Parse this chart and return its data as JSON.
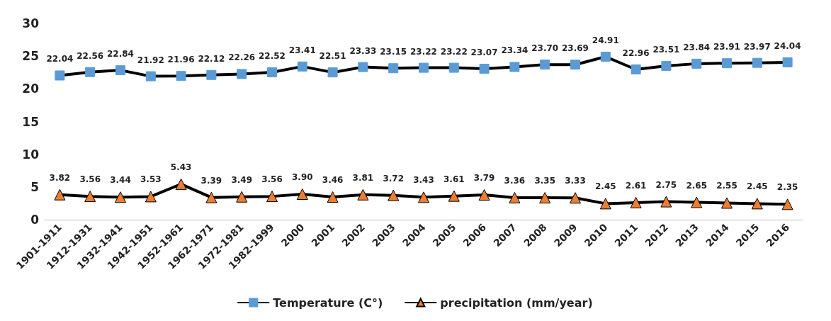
{
  "chart_data": {
    "type": "line",
    "categories": [
      "1901-1911",
      "1912-1931",
      "1932-1941",
      "1942-1951",
      "1952-1961",
      "1962-1971",
      "1972-1981",
      "1982-1999",
      "2000",
      "2001",
      "2002",
      "2003",
      "2004",
      "2005",
      "2006",
      "2007",
      "2008",
      "2009",
      "2010",
      "2011",
      "2012",
      "2013",
      "2014",
      "2015",
      "2016"
    ],
    "series": [
      {
        "name": "Temperature (C°)",
        "color": "#5b9bd5",
        "marker": "square",
        "values": [
          22.04,
          22.56,
          22.84,
          21.92,
          21.96,
          22.12,
          22.26,
          22.52,
          23.41,
          22.51,
          23.33,
          23.15,
          23.22,
          23.22,
          23.07,
          23.34,
          23.7,
          23.69,
          24.91,
          22.96,
          23.51,
          23.84,
          23.91,
          23.97,
          24.04
        ],
        "value_labels": [
          "22.04",
          "22.56",
          "22.84",
          "21.92",
          "21.96",
          "22.12",
          "22.26",
          "22.52",
          "23.41",
          "22.51",
          "23.33",
          "23.15",
          "23.22",
          "23.22",
          "23.07",
          "23.34",
          "23.70",
          "23.69",
          "24.91",
          "22.96",
          "23.51",
          "23.84",
          "23.91",
          "23.97",
          "24.04"
        ]
      },
      {
        "name": "precipitation (mm/year)",
        "color": "#ed7d31",
        "marker": "triangle",
        "values": [
          3.82,
          3.56,
          3.44,
          3.53,
          5.43,
          3.39,
          3.49,
          3.56,
          3.9,
          3.46,
          3.81,
          3.72,
          3.43,
          3.61,
          3.79,
          3.36,
          3.35,
          3.33,
          2.45,
          2.61,
          2.75,
          2.65,
          2.55,
          2.45,
          2.35
        ],
        "value_labels": [
          "3.82",
          "3.56",
          "3.44",
          "3.53",
          "5.43",
          "3.39",
          "3.49",
          "3.56",
          "3.90",
          "3.46",
          "3.81",
          "3.72",
          "3.43",
          "3.61",
          "3.79",
          "3.36",
          "3.35",
          "3.33",
          "2.45",
          "2.61",
          "2.75",
          "2.65",
          "2.55",
          "2.45",
          "2.35"
        ]
      }
    ],
    "ylim": [
      0,
      30
    ],
    "yticks": [
      0,
      5,
      10,
      15,
      20,
      25,
      30
    ],
    "grid": false,
    "legend": "bottom",
    "line_style": "solid"
  }
}
